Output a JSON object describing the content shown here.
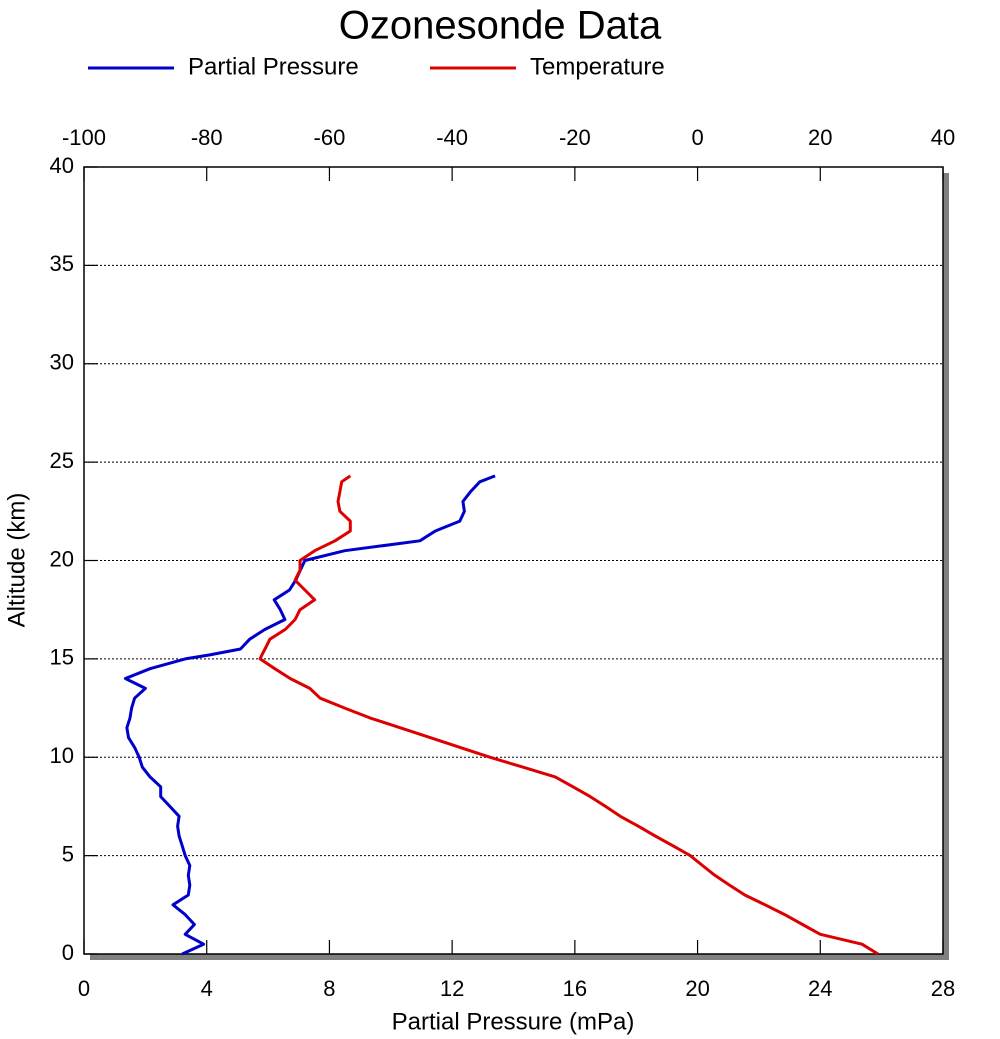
{
  "chart_data": {
    "type": "line",
    "title": "Ozonesonde Data",
    "xlabel": "Partial Pressure (mPa)",
    "ylabel": "Altitude (km)",
    "xlim": [
      0,
      28
    ],
    "xticks": [
      0,
      4,
      8,
      12,
      16,
      20,
      24,
      28
    ],
    "x2lim": [
      -100,
      40
    ],
    "x2ticks": [
      -100,
      -80,
      -60,
      -40,
      -20,
      0,
      20,
      40
    ],
    "ylim": [
      0,
      40
    ],
    "yticks": [
      0,
      5,
      10,
      15,
      20,
      25,
      30,
      35,
      40
    ],
    "grid": true,
    "legend": "top",
    "y": [
      0,
      0.5,
      1,
      1.5,
      2,
      2.5,
      3,
      3.5,
      4,
      4.5,
      5,
      5.5,
      6,
      6.5,
      7,
      7.5,
      8,
      8.5,
      9,
      9.5,
      10,
      10.5,
      11,
      11.5,
      12,
      12.5,
      13,
      13.5,
      14,
      14.5,
      15,
      15.2,
      15.5,
      16,
      16.5,
      17,
      17.5,
      18,
      18.5,
      19,
      19.5,
      20,
      20.5,
      21,
      21.5,
      22,
      22.5,
      23,
      23.5,
      24,
      24.3
    ],
    "series": [
      {
        "name": "Partial Pressure",
        "color": "#0000cc",
        "axis": "x",
        "values": [
          3.2,
          3.9,
          3.3,
          3.6,
          3.3,
          2.9,
          3.4,
          3.45,
          3.4,
          3.45,
          3.3,
          3.2,
          3.1,
          3.05,
          3.1,
          2.8,
          2.5,
          2.5,
          2.15,
          1.9,
          1.8,
          1.65,
          1.45,
          1.4,
          1.5,
          1.55,
          1.65,
          2.0,
          1.35,
          2.15,
          3.3,
          4.1,
          5.1,
          5.4,
          5.9,
          6.55,
          6.4,
          6.2,
          6.7,
          6.9,
          7.05,
          7.2,
          8.5,
          10.95,
          11.45,
          12.25,
          12.4,
          12.35,
          12.6,
          12.9,
          13.4
        ]
      },
      {
        "name": "Temperature",
        "color": "#dd0000",
        "axis": "x2",
        "values": [
          29.4,
          26.8,
          20.0,
          17.1,
          14.2,
          11.0,
          7.7,
          5.2,
          2.8,
          0.8,
          -1.2,
          -4.0,
          -6.9,
          -9.7,
          -12.6,
          -15.0,
          -17.5,
          -20.3,
          -23.2,
          -28.5,
          -33.8,
          -38.7,
          -43.6,
          -48.5,
          -53.4,
          -57.5,
          -61.5,
          -63.2,
          -66.4,
          -68.9,
          -71.3,
          -71.0,
          -70.5,
          -69.7,
          -67.2,
          -65.6,
          -64.8,
          -62.4,
          -64.0,
          -65.6,
          -64.8,
          -64.8,
          -62.4,
          -59.1,
          -56.6,
          -56.6,
          -58.3,
          -58.6,
          -58.3,
          -58.0,
          -56.6
        ]
      }
    ]
  }
}
